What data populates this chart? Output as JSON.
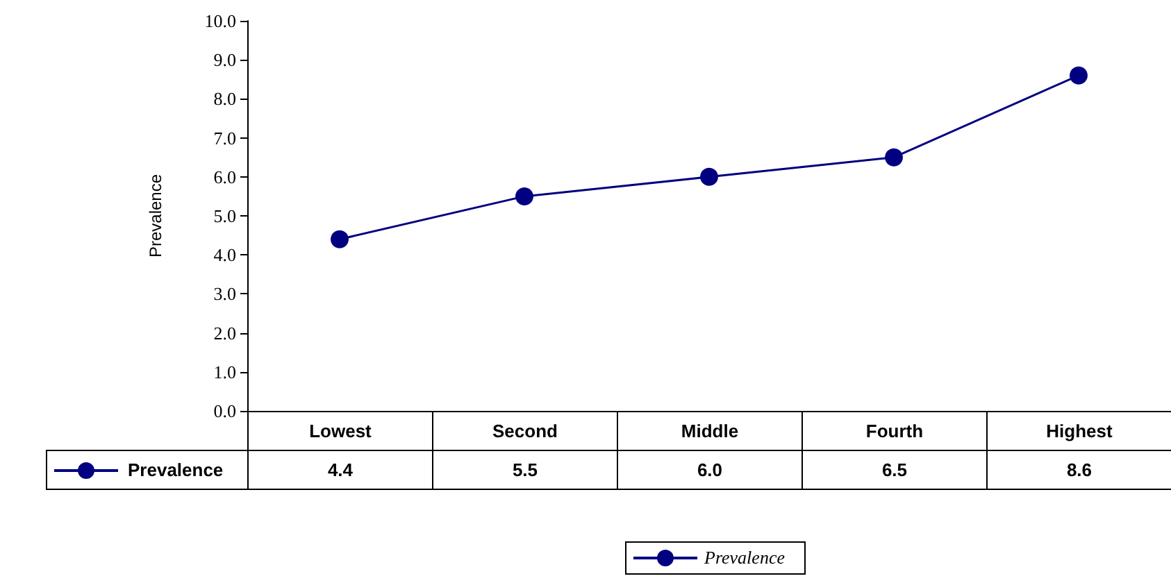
{
  "chart_data": {
    "type": "line",
    "ylabel": "Prevalence",
    "categories": [
      "Lowest",
      "Second",
      "Middle",
      "Fourth",
      "Highest"
    ],
    "series": [
      {
        "name": "Prevalence",
        "color": "#000080",
        "values": [
          4.4,
          5.5,
          6.0,
          6.5,
          8.6
        ],
        "value_labels": [
          "4.4",
          "5.5",
          "6.0",
          "6.5",
          "8.6"
        ]
      }
    ],
    "ylim": [
      0,
      10
    ],
    "yticks": [
      {
        "value": 0,
        "label": "0.0"
      },
      {
        "value": 1,
        "label": "1.0"
      },
      {
        "value": 2,
        "label": "2.0"
      },
      {
        "value": 3,
        "label": "3.0"
      },
      {
        "value": 4,
        "label": "4.0"
      },
      {
        "value": 5,
        "label": "5.0"
      },
      {
        "value": 6,
        "label": "6.0"
      },
      {
        "value": 7,
        "label": "7.0"
      },
      {
        "value": 8,
        "label": "8.0"
      },
      {
        "value": 9,
        "label": "9.0"
      },
      {
        "value": 10,
        "label": "10.0"
      }
    ],
    "grid": false,
    "legend": "bottom",
    "marker": "circle",
    "line_style": "solid"
  }
}
